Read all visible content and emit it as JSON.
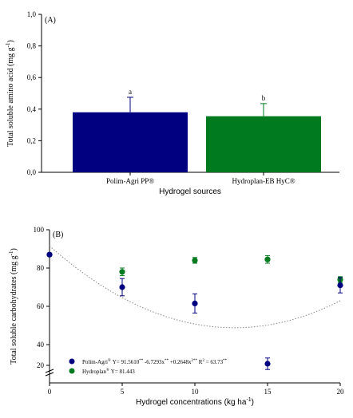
{
  "chart_data": [
    {
      "type": "bar",
      "panel_label": "(A)",
      "xlabel": "Hydrogel sources",
      "ylabel": "Total soluble amino acid (mg g",
      "ylabel_sup": "-1",
      "ylabel_end": ")",
      "ylim": [
        0,
        1.0
      ],
      "yticks": [
        "0,0",
        "0,2",
        "0,4",
        "0,6",
        "0,8",
        "1,0"
      ],
      "categories": [
        "Polim-Agri PP®",
        "Hydroplan-EB HyC®"
      ],
      "values": [
        0.38,
        0.355
      ],
      "errors": [
        0.095,
        0.08
      ],
      "letters": [
        "a",
        "b"
      ],
      "colors": [
        "#000080",
        "#007a1e"
      ],
      "grid": false
    },
    {
      "type": "scatter",
      "panel_label": "(B)",
      "xlabel": "Hydrogel concentrations (kg ha",
      "xlabel_sup": "-1",
      "xlabel_end": ")",
      "ylabel": "Total soluble carbohydrates (mg g",
      "ylabel_sup": "-1",
      "ylabel_end": ")",
      "xlim": [
        0,
        20
      ],
      "ylim": [
        20,
        100
      ],
      "xticks": [
        "0",
        "5",
        "10",
        "15",
        "20"
      ],
      "yticks": [
        "20",
        "40",
        "60",
        "80",
        "100"
      ],
      "x": [
        0,
        5,
        10,
        15,
        20
      ],
      "series": [
        {
          "name": "Polim-Agri",
          "color": "#000080",
          "values": [
            87,
            70,
            61.5,
            30,
            71
          ],
          "errors": [
            0,
            4.5,
            5,
            3,
            4
          ],
          "equation_lead": "Y= 91.5610",
          "equation_stars1": "**",
          "equation_mid1": " -6.7293x",
          "equation_stars2": "**",
          "equation_mid2": " +0.2648x",
          "equation_pow": "2**",
          "equation_r": " R",
          "equation_r_pow": "2",
          "equation_r_val": " = 63.73",
          "equation_r_stars": "**"
        },
        {
          "name": "Hydroplan",
          "color": "#007a1e",
          "values": [
            87,
            78,
            84,
            84.5,
            74
          ],
          "errors": [
            0,
            2,
            1.5,
            2,
            1.5
          ],
          "equation": "Y= 81.443"
        }
      ],
      "legend_reg_mark": "®",
      "fit_coefficients": [
        91.561,
        -6.7293,
        0.2648
      ],
      "grid": false
    }
  ]
}
